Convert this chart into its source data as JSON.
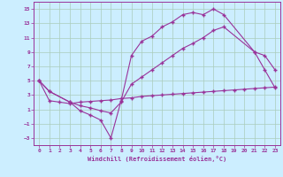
{
  "xlabel": "Windchill (Refroidissement éolien,°C)",
  "bg_color": "#cceeff",
  "grid_color": "#aaccbb",
  "line_color": "#993399",
  "xlim": [
    -0.5,
    23.5
  ],
  "ylim": [
    -4.0,
    16.0
  ],
  "xticks": [
    0,
    1,
    2,
    3,
    4,
    5,
    6,
    7,
    8,
    9,
    10,
    11,
    12,
    13,
    14,
    15,
    16,
    17,
    18,
    19,
    20,
    21,
    22,
    23
  ],
  "yticks": [
    -3,
    -1,
    1,
    3,
    5,
    7,
    9,
    11,
    13,
    15
  ],
  "curve1_x": [
    0,
    1,
    3,
    4,
    5,
    6,
    7,
    8,
    9,
    10,
    11,
    12,
    13,
    14,
    15,
    16,
    17,
    18,
    21,
    22,
    23
  ],
  "curve1_y": [
    5,
    3.5,
    2,
    0.8,
    0.2,
    -0.5,
    -3,
    2.2,
    8.5,
    10.5,
    11.2,
    12.5,
    13.2,
    14.2,
    14.5,
    14.2,
    15.0,
    14.2,
    9.0,
    6.5,
    4.0
  ],
  "curve2_x": [
    0,
    1,
    3,
    4,
    5,
    6,
    7,
    8,
    9,
    10,
    11,
    12,
    13,
    14,
    15,
    16,
    17,
    18,
    21,
    22,
    23
  ],
  "curve2_y": [
    5,
    3.5,
    2,
    1.5,
    1.2,
    0.8,
    0.5,
    2.0,
    4.5,
    5.5,
    6.5,
    7.5,
    8.5,
    9.5,
    10.2,
    11.0,
    12.0,
    12.5,
    9.0,
    8.5,
    6.5
  ],
  "curve3_x": [
    0,
    1,
    2,
    3,
    4,
    5,
    6,
    7,
    8,
    9,
    10,
    11,
    12,
    13,
    14,
    15,
    16,
    17,
    18,
    19,
    20,
    21,
    22,
    23
  ],
  "curve3_y": [
    5,
    2.2,
    2.0,
    1.8,
    2.0,
    2.1,
    2.2,
    2.3,
    2.5,
    2.6,
    2.8,
    2.9,
    3.0,
    3.1,
    3.2,
    3.3,
    3.4,
    3.5,
    3.6,
    3.7,
    3.8,
    3.9,
    4.0,
    4.1
  ]
}
